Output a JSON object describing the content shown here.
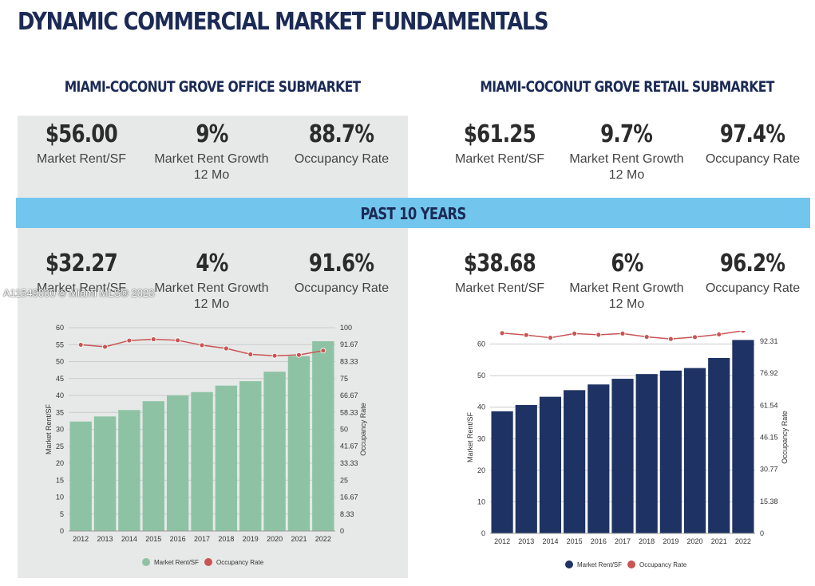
{
  "title": "DYNAMIC COMMERCIAL MARKET FUNDAMENTALS",
  "band_label": "PAST 10 YEARS",
  "watermark": "A11549000 © Miami MLS® 2023",
  "office": {
    "title": "MIAMI-COCONUT GROVE OFFICE SUBMARKET",
    "current": [
      {
        "value": "$56.00",
        "label": "Market Rent/SF",
        "label2": ""
      },
      {
        "value": "9%",
        "label": "Market Rent Growth",
        "label2": "12 Mo"
      },
      {
        "value": "88.7%",
        "label": "Occupancy Rate",
        "label2": ""
      }
    ],
    "past": [
      {
        "value": "$32.27",
        "label": "Market Rent/SF",
        "label2": ""
      },
      {
        "value": "4%",
        "label": "Market Rent Growth",
        "label2": "12 Mo"
      },
      {
        "value": "91.6%",
        "label": "Occupancy Rate",
        "label2": ""
      }
    ]
  },
  "retail": {
    "title": "MIAMI-COCONUT GROVE RETAIL SUBMARKET",
    "current": [
      {
        "value": "$61.25",
        "label": "Market Rent/SF",
        "label2": ""
      },
      {
        "value": "9.7%",
        "label": "Market Rent Growth",
        "label2": "12 Mo"
      },
      {
        "value": "97.4%",
        "label": "Occupancy Rate",
        "label2": ""
      }
    ],
    "past": [
      {
        "value": "$38.68",
        "label": "Market Rent/SF",
        "label2": ""
      },
      {
        "value": "6%",
        "label": "Market Rent Growth",
        "label2": "12 Mo"
      },
      {
        "value": "96.2%",
        "label": "Occupancy Rate",
        "label2": ""
      }
    ]
  },
  "chart_data": [
    {
      "type": "bar",
      "title": "Miami-Coconut Grove Office Submarket",
      "categories": [
        "2012",
        "2013",
        "2014",
        "2015",
        "2016",
        "2017",
        "2018",
        "2019",
        "2020",
        "2021",
        "2022"
      ],
      "series": [
        {
          "name": "Market Rent/SF",
          "type": "bar",
          "axis": "left",
          "color": "#8dc3a4",
          "values": [
            32.3,
            33.8,
            35.7,
            38.3,
            40.0,
            41.0,
            42.9,
            44.2,
            47.0,
            51.6,
            56.0
          ]
        },
        {
          "name": "Occupancy Rate",
          "type": "line",
          "axis": "right",
          "color": "#c95454",
          "values": [
            91.6,
            90.6,
            93.7,
            94.3,
            93.8,
            91.4,
            89.8,
            86.9,
            86.2,
            86.6,
            88.7
          ]
        }
      ],
      "xlabel": "",
      "ylabel": "Market Rent/SF",
      "y2label": "Occupancy Rate",
      "ylim": [
        0,
        60
      ],
      "y2lim": [
        0,
        100
      ],
      "yticks": [
        "0",
        "5",
        "10",
        "15",
        "20",
        "25",
        "30",
        "35",
        "40",
        "45",
        "50",
        "55",
        "60"
      ],
      "y2ticks": [
        "0",
        "8.33",
        "16.67",
        "25",
        "33.33",
        "41.67",
        "50",
        "58.33",
        "66.67",
        "75",
        "83.33",
        "91.67",
        "100"
      ],
      "grid": true,
      "legend": "bottom"
    },
    {
      "type": "bar",
      "title": "Miami-Coconut Grove Retail Submarket",
      "categories": [
        "2012",
        "2013",
        "2014",
        "2015",
        "2016",
        "2017",
        "2018",
        "2019",
        "2020",
        "2021",
        "2022"
      ],
      "series": [
        {
          "name": "Market Rent/SF",
          "type": "bar",
          "axis": "left",
          "color": "#1e3263",
          "values": [
            38.7,
            40.7,
            43.3,
            45.4,
            47.2,
            49.0,
            50.5,
            51.6,
            52.4,
            55.6,
            61.3
          ]
        },
        {
          "name": "Occupancy Rate",
          "type": "line",
          "axis": "right",
          "color": "#c95454",
          "values": [
            96.2,
            95.3,
            94.0,
            96.0,
            95.4,
            96.0,
            94.4,
            93.4,
            94.3,
            95.6,
            97.4
          ]
        }
      ],
      "xlabel": "",
      "ylabel": "Market Rent/SF",
      "y2label": "Occupancy Rate",
      "ylim": [
        0,
        60.9
      ],
      "y2lim": [
        0,
        92.31
      ],
      "yticks": [
        "0",
        "10",
        "20",
        "30",
        "40",
        "50",
        "60"
      ],
      "y2ticks": [
        "0",
        "15.38",
        "30.77",
        "46.15",
        "61.54",
        "76.92",
        "92.31"
      ],
      "grid": true,
      "legend": "bottom"
    }
  ]
}
